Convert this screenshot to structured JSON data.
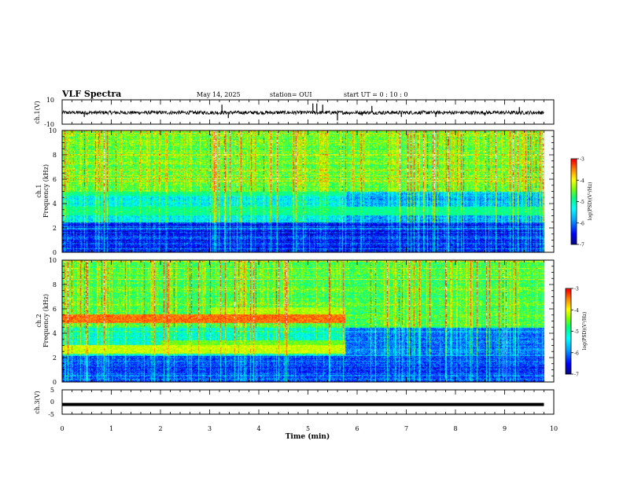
{
  "header": {
    "title": "VLF Spectra",
    "date": "May 14, 2025",
    "station": "station= OUI",
    "start_ut": "start  UT =   0 : 10 : 0"
  },
  "colors": {
    "background": "#ffffff",
    "axis": "#000000",
    "colormap": [
      "#08087a",
      "#0000ff",
      "#00a8ff",
      "#00ffff",
      "#00ff7f",
      "#7fff00",
      "#ffff00",
      "#ff8000",
      "#ff0000",
      "#ffffff"
    ]
  },
  "chart_data": [
    {
      "type": "line",
      "id": "ch1-waveform",
      "ylabel": "ch.1(V)",
      "ylim": [
        -10,
        10
      ],
      "yticks": [
        "10",
        "-10"
      ],
      "xlim": [
        0,
        10
      ],
      "data_extent_min": 9.8,
      "baseline_v": -0.5,
      "noise_amplitude_v": 1.5,
      "spikes": [
        {
          "t": 0.45,
          "v": -4
        },
        {
          "t": 3.25,
          "v": 6
        },
        {
          "t": 3.38,
          "v": -5
        },
        {
          "t": 5.1,
          "v": 7
        },
        {
          "t": 5.18,
          "v": 7
        },
        {
          "t": 5.3,
          "v": 6
        },
        {
          "t": 5.6,
          "v": -7
        },
        {
          "t": 6.1,
          "v": -3
        },
        {
          "t": 6.3,
          "v": 5
        },
        {
          "t": 6.9,
          "v": -4
        },
        {
          "t": 7.6,
          "v": -4
        },
        {
          "t": 8.6,
          "v": -3
        },
        {
          "t": 9.3,
          "v": 4
        }
      ]
    },
    {
      "type": "heatmap",
      "id": "ch1-spectrogram",
      "ylabel": "ch.1\nFrequency (kHz)",
      "ylabel_line1": "ch.1",
      "ylabel_line2": "Frequency  (kHz)",
      "yticks": [
        "0",
        "2",
        "4",
        "6",
        "8",
        "10"
      ],
      "ylim": [
        0,
        10
      ],
      "xlim": [
        0,
        10
      ],
      "data_extent_min": 9.8,
      "colorbar": {
        "label": "log(PSD)(V²/Hz)",
        "ticks": [
          "-3",
          "-4",
          "-5",
          "-6",
          "-7"
        ],
        "range": [
          -7,
          -3
        ]
      },
      "features": {
        "low_band_khz": [
          0,
          2.5
        ],
        "low_band_level": -6.6,
        "mid_band_khz": [
          2.5,
          5
        ],
        "mid_band_level": -5.6,
        "high_band_level": -4.8,
        "change_time_min": 5.75,
        "late_mid_level": -6.0,
        "tones": [
          {
            "f": 5.0,
            "t0": 0,
            "t1": 5.75,
            "level": -5.0
          },
          {
            "f": 3.4,
            "t0": 0,
            "t1": 9.8,
            "level": -5.0
          }
        ]
      }
    },
    {
      "type": "heatmap",
      "id": "ch2-spectrogram",
      "ylabel": "ch.2\nFrequency (kHz)",
      "ylabel_line1": "ch.2",
      "ylabel_line2": "Frequency  (kHz)",
      "yticks": [
        "0",
        "2",
        "4",
        "6",
        "8",
        "10"
      ],
      "ylim": [
        0,
        10
      ],
      "xlim": [
        0,
        10
      ],
      "data_extent_min": 9.8,
      "colorbar": {
        "label": "log(PSD)(V²/Hz)",
        "ticks": [
          "-3",
          "-4",
          "-5",
          "-6",
          "-7"
        ],
        "range": [
          -7,
          -3
        ]
      },
      "features": {
        "low_band_khz": [
          0,
          2.2
        ],
        "low_band_level": -6.4,
        "mid_band_khz": [
          2.2,
          4.5
        ],
        "mid_band_level": -5.4,
        "high_band_level": -4.9,
        "change_time_min": 5.75,
        "late_mid_level": -6.2,
        "tones": [
          {
            "f": 5.2,
            "t0": 0,
            "t1": 5.75,
            "level": -3.6
          },
          {
            "f": 2.7,
            "t0": 0,
            "t1": 5.75,
            "level": -4.3
          },
          {
            "f": 3.1,
            "t0": 2.0,
            "t1": 5.75,
            "level": -4.6
          },
          {
            "f": 5.8,
            "t0": 3.0,
            "t1": 5.75,
            "level": -4.4
          }
        ]
      }
    },
    {
      "type": "line",
      "id": "ch3-waveform",
      "ylabel": "ch.3(V)",
      "ylim": [
        -5,
        5
      ],
      "yticks": [
        "5",
        "0",
        "-5"
      ],
      "xlim": [
        0,
        10
      ],
      "data_extent_min": 9.8,
      "baseline_v": -1.0,
      "noise_amplitude_v": 0
    }
  ],
  "xaxis": {
    "label": "Time  (min)",
    "ticks": [
      "0",
      "1",
      "2",
      "3",
      "4",
      "5",
      "6",
      "7",
      "8",
      "9",
      "10"
    ],
    "xlim": [
      0,
      10
    ]
  }
}
